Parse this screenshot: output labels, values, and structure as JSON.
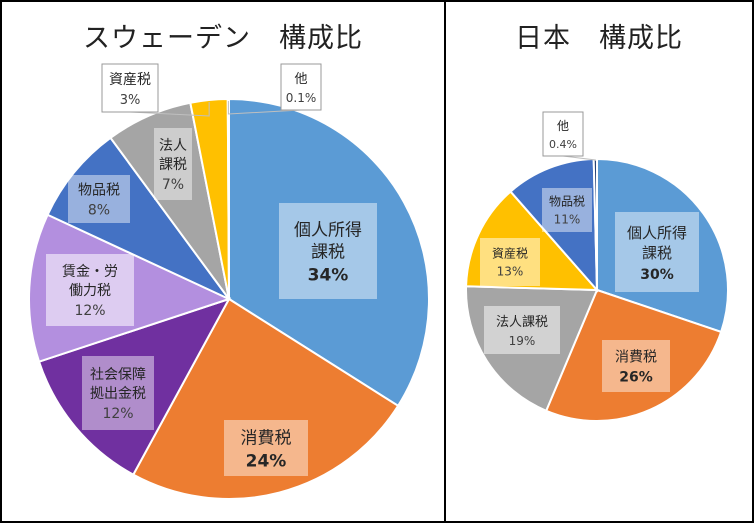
{
  "chart_data": [
    {
      "type": "pie",
      "title": "スウェーデン　構成比",
      "slices": [
        {
          "label": "個人所得\n課税",
          "pct": "34%",
          "value": 34,
          "color": "#5b9bd5"
        },
        {
          "label": "消費税",
          "pct": "24%",
          "value": 24,
          "color": "#ed7d31"
        },
        {
          "label": "社会保障\n拠出金税",
          "pct": "12%",
          "value": 12,
          "color": "#7030a0"
        },
        {
          "label": "賃金・労\n働力税",
          "pct": "12%",
          "value": 12,
          "color": "#b38fdf"
        },
        {
          "label": "物品税",
          "pct": "8%",
          "value": 8,
          "color": "#4472c4"
        },
        {
          "label": "法人\n課税",
          "pct": "7%",
          "value": 7,
          "color": "#a5a5a5"
        },
        {
          "label": "資産税",
          "pct": "3%",
          "value": 3,
          "color": "#ffc000"
        },
        {
          "label": "他",
          "pct": "0.1%",
          "value": 0.1,
          "color": "#264478"
        }
      ]
    },
    {
      "type": "pie",
      "title": "日本　構成比",
      "slices": [
        {
          "label": "個人所得\n課税",
          "pct": "30%",
          "value": 30,
          "color": "#5b9bd5"
        },
        {
          "label": "消費税",
          "pct": "26%",
          "value": 26,
          "color": "#ed7d31"
        },
        {
          "label": "法人課税",
          "pct": "19%",
          "value": 19,
          "color": "#a5a5a5"
        },
        {
          "label": "資産税",
          "pct": "13%",
          "value": 13,
          "color": "#ffc000"
        },
        {
          "label": "物品税",
          "pct": "11%",
          "value": 11,
          "color": "#4472c4"
        },
        {
          "label": "他",
          "pct": "0.4%",
          "value": 0.4,
          "color": "#264478"
        }
      ]
    }
  ]
}
